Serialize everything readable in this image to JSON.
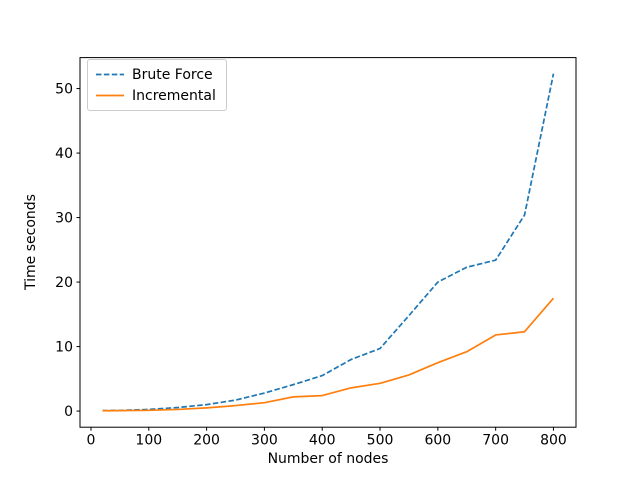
{
  "figure": {
    "background": "#ffffff",
    "text_color": "#000000",
    "spine_color": "#000000"
  },
  "chart_data": {
    "type": "line",
    "title": "",
    "xlabel": "Number of nodes",
    "ylabel": "Time seconds",
    "x": [
      20,
      50,
      100,
      150,
      200,
      250,
      300,
      350,
      400,
      450,
      500,
      550,
      600,
      650,
      700,
      750,
      800
    ],
    "series": [
      {
        "name": "Brute Force",
        "color": "#1f77b4",
        "style": "dashed",
        "values": [
          0.07,
          0.1,
          0.25,
          0.55,
          1.0,
          1.7,
          2.8,
          4.1,
          5.5,
          8.0,
          9.7,
          14.8,
          20.0,
          22.3,
          23.4,
          30.4,
          52.3
        ]
      },
      {
        "name": "Incremental",
        "color": "#ff7f0e",
        "style": "solid",
        "values": [
          0.05,
          0.07,
          0.12,
          0.25,
          0.5,
          0.85,
          1.3,
          2.2,
          2.4,
          3.6,
          4.3,
          5.6,
          7.5,
          9.2,
          11.8,
          12.3,
          17.5
        ]
      }
    ],
    "xlim": [
      -19,
      839
    ],
    "ylim": [
      -2.5,
      54.8
    ],
    "xticks": [
      0,
      100,
      200,
      300,
      400,
      500,
      600,
      700,
      800
    ],
    "yticks": [
      0,
      10,
      20,
      30,
      40,
      50
    ],
    "grid": false,
    "legend_position": "upper-left"
  }
}
